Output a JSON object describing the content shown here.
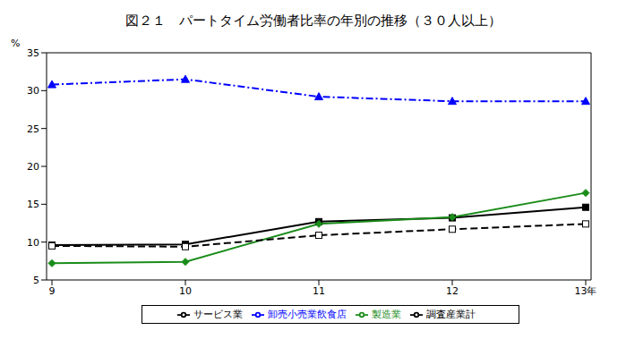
{
  "chart_data": {
    "type": "line",
    "title": "図２１　パートタイム労働者比率の年別の推移（３０人以上）",
    "y_label": "%",
    "categories": [
      "9",
      "10",
      "11",
      "12",
      "13年"
    ],
    "ylim": [
      5,
      35
    ],
    "yticks": [
      5,
      10,
      15,
      20,
      25,
      30,
      35
    ],
    "grid": false,
    "legend": "bottom",
    "series": [
      {
        "name": "調査産業計",
        "color": "#000000",
        "marker": "square",
        "line_style": "solid",
        "values": [
          9.6,
          9.7,
          12.7,
          13.2,
          14.6
        ]
      },
      {
        "name": "製造業",
        "color": "#1a8c1a",
        "marker": "diamond",
        "line_style": "solid",
        "values": [
          7.2,
          7.4,
          12.4,
          13.3,
          16.5
        ]
      },
      {
        "name": "卸売小売業飲食店",
        "color": "#0000ff",
        "marker": "triangle",
        "line_style": "dashdot",
        "values": [
          30.8,
          31.5,
          29.2,
          28.6,
          28.6
        ]
      },
      {
        "name": "サービス業",
        "color": "#000000",
        "marker": "open_square",
        "line_style": "dashed",
        "values": [
          9.5,
          9.4,
          10.9,
          11.7,
          12.4
        ]
      }
    ]
  }
}
